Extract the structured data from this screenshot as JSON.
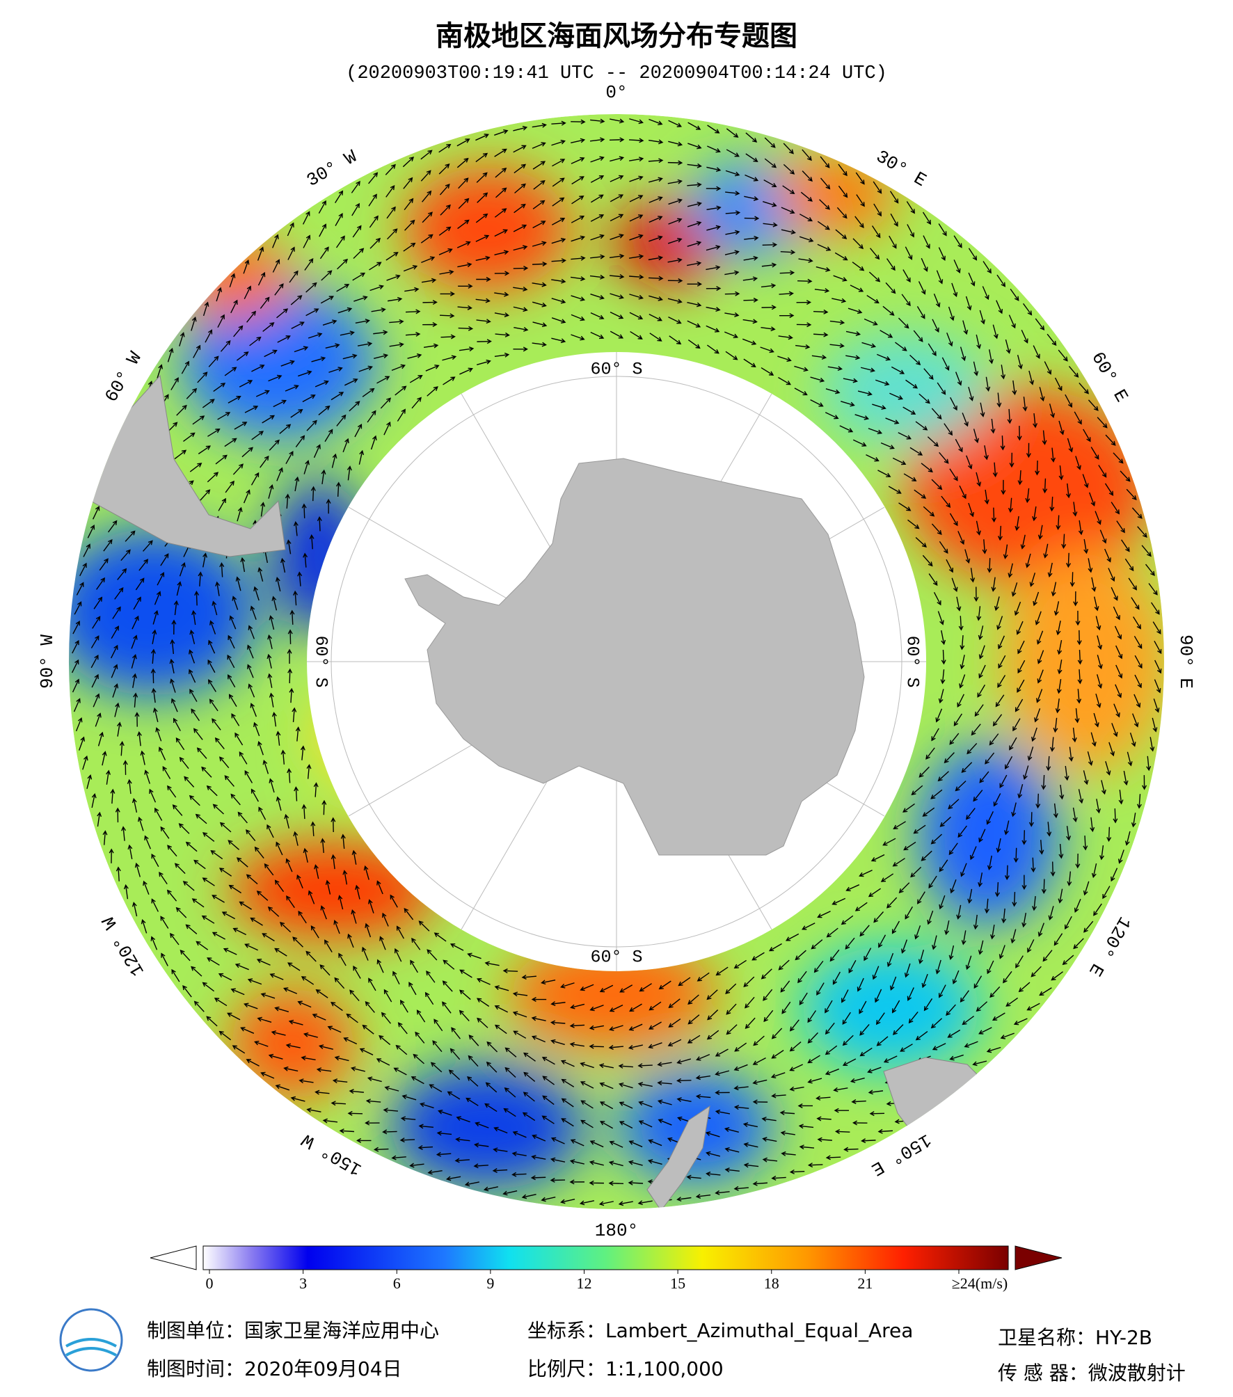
{
  "header": {
    "title": "南极地区海面风场分布专题图",
    "subtitle": "(20200903T00:19:41 UTC -- 20200904T00:14:24 UTC)"
  },
  "map": {
    "lon_labels": [
      "0°",
      "30° E",
      "60° E",
      "90° E",
      "120° E",
      "150° E",
      "180°",
      "150° W",
      "120° W",
      "90° W",
      "60° W",
      "30° W"
    ],
    "lat_labels": [
      "60° S",
      "60° S",
      "60° S",
      "60° S"
    ]
  },
  "colorbar": {
    "ticks": [
      0,
      3,
      6,
      9,
      12,
      15,
      18,
      21,
      {
        "value": 24,
        "label": "≥24(m/s)"
      }
    ]
  },
  "footer": {
    "unit": "制图单位：国家卫星海洋应用中心",
    "time": "制图时间：2020年09月04日",
    "crs": "坐标系：Lambert_Azimuthal_Equal_Area",
    "scale": "比例尺：1:1,100,000",
    "satellite": "卫星名称：HY-2B",
    "sensor": "传 感 器：微波散射计"
  }
}
